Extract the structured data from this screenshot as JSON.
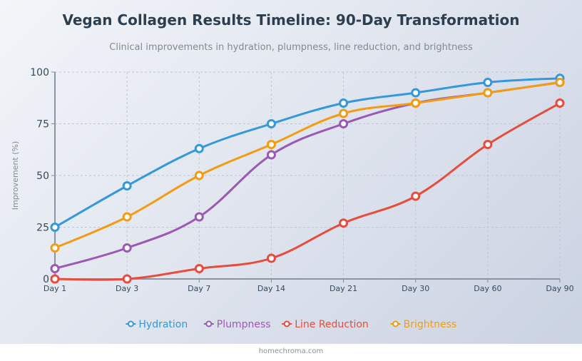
{
  "chart_data": {
    "type": "line",
    "title": "Vegan Collagen Results Timeline: 90-Day Transformation",
    "subtitle": "Clinical improvements in hydration, plumpness, line reduction, and brightness",
    "ylabel": "Improvement (%)",
    "xlabel": "",
    "ylim": [
      0,
      100
    ],
    "yticks": [
      0,
      25,
      50,
      75,
      100
    ],
    "grid": true,
    "legend": "bottom",
    "categories": [
      "Day 1",
      "Day 3",
      "Day 7",
      "Day 14",
      "Day 21",
      "Day 30",
      "Day 60",
      "Day 90"
    ],
    "series": [
      {
        "name": "Hydration",
        "color": "#3498db",
        "values": [
          25,
          45,
          63,
          75,
          85,
          90,
          95,
          97
        ]
      },
      {
        "name": "Plumpness",
        "color": "#9b59b6",
        "values": [
          5,
          15,
          30,
          60,
          75,
          85,
          90,
          95
        ]
      },
      {
        "name": "Line Reduction",
        "color": "#e74c3c",
        "values": [
          0,
          0,
          5,
          10,
          27,
          40,
          65,
          85
        ]
      },
      {
        "name": "Brightness",
        "color": "#f39c12",
        "values": [
          15,
          30,
          50,
          65,
          80,
          85,
          90,
          95
        ]
      }
    ]
  },
  "footer": "homechroma.com"
}
